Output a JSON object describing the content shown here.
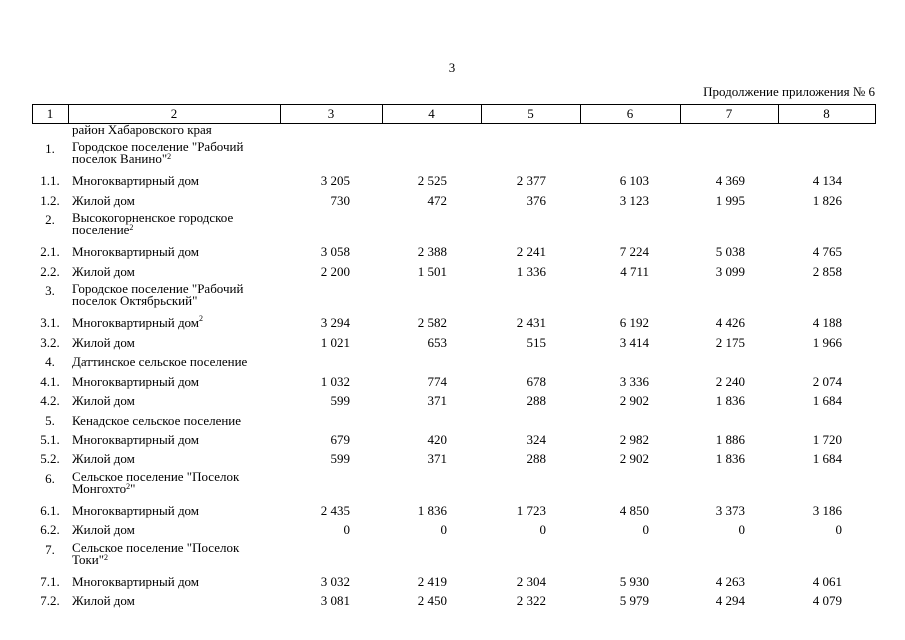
{
  "page_number": "3",
  "caption": "Продолжение приложения № 6",
  "table": {
    "header": [
      "1",
      "2",
      "3",
      "4",
      "5",
      "6",
      "7",
      "8"
    ],
    "rows": [
      {
        "name": [
          "район Хабаровского края"
        ]
      },
      {
        "num": "1.",
        "name": [
          "Городское поселение \"Рабочий",
          "поселок Ванино\""
        ],
        "sup": "2"
      },
      {
        "num": "1.1.",
        "name": [
          "Многоквартирный дом"
        ],
        "values": [
          "3 205",
          "2 525",
          "2 377",
          "6 103",
          "4 369",
          "4 134"
        ]
      },
      {
        "num": "1.2.",
        "name": [
          "Жилой дом"
        ],
        "values": [
          "730",
          "472",
          "376",
          "3 123",
          "1 995",
          "1 826"
        ]
      },
      {
        "num": "2.",
        "name": [
          "Высокогорненское городское",
          "поселение"
        ],
        "sup": "2"
      },
      {
        "num": "2.1.",
        "name": [
          "Многоквартирный дом"
        ],
        "values": [
          "3 058",
          "2 388",
          "2 241",
          "7 224",
          "5 038",
          "4 765"
        ]
      },
      {
        "num": "2.2.",
        "name": [
          "Жилой дом"
        ],
        "values": [
          "2 200",
          "1 501",
          "1 336",
          "4 711",
          "3 099",
          "2 858"
        ]
      },
      {
        "num": "3.",
        "name": [
          "Городское поселение \"Рабочий",
          "поселок Октябрьский\""
        ]
      },
      {
        "num": "3.1.",
        "name": [
          "Многоквартирный дом"
        ],
        "sup": "2",
        "values": [
          "3 294",
          "2 582",
          "2 431",
          "6 192",
          "4 426",
          "4 188"
        ]
      },
      {
        "num": "3.2.",
        "name": [
          "Жилой дом"
        ],
        "values": [
          "1 021",
          "653",
          "515",
          "3 414",
          "2 175",
          "1 966"
        ]
      },
      {
        "num": "4.",
        "name": [
          "Даттинское сельское поселение"
        ]
      },
      {
        "num": "4.1.",
        "name": [
          "Многоквартирный дом"
        ],
        "values": [
          "1 032",
          "774",
          "678",
          "3 336",
          "2 240",
          "2 074"
        ]
      },
      {
        "num": "4.2.",
        "name": [
          "Жилой дом"
        ],
        "values": [
          "599",
          "371",
          "288",
          "2 902",
          "1 836",
          "1 684"
        ]
      },
      {
        "num": "5.",
        "name": [
          "Кенадское сельское поселение"
        ]
      },
      {
        "num": "5.1.",
        "name": [
          "Многоквартирный дом"
        ],
        "values": [
          "679",
          "420",
          "324",
          "2 982",
          "1 886",
          "1 720"
        ]
      },
      {
        "num": "5.2.",
        "name": [
          "Жилой дом"
        ],
        "values": [
          "599",
          "371",
          "288",
          "2 902",
          "1 836",
          "1 684"
        ]
      },
      {
        "num": "6.",
        "name": [
          "Сельское поселение \"Поселок",
          "Монгохто"
        ],
        "sup": "2",
        "tail": "\""
      },
      {
        "num": "6.1.",
        "name": [
          "Многоквартирный дом"
        ],
        "values": [
          "2 435",
          "1 836",
          "1 723",
          "4 850",
          "3 373",
          "3 186"
        ]
      },
      {
        "num": "6.2.",
        "name": [
          "Жилой дом"
        ],
        "values": [
          "0",
          "0",
          "0",
          "0",
          "0",
          "0"
        ]
      },
      {
        "num": "7.",
        "name": [
          "Сельское поселение \"Поселок",
          "Токи\""
        ],
        "sup": "2"
      },
      {
        "num": "7.1.",
        "name": [
          "Многоквартирный дом"
        ],
        "values": [
          "3 032",
          "2 419",
          "2 304",
          "5 930",
          "4 263",
          "4 061"
        ]
      },
      {
        "num": "7.2.",
        "name": [
          "Жилой дом"
        ],
        "values": [
          "3 081",
          "2 450",
          "2 322",
          "5 979",
          "4 294",
          "4 079"
        ]
      }
    ]
  }
}
